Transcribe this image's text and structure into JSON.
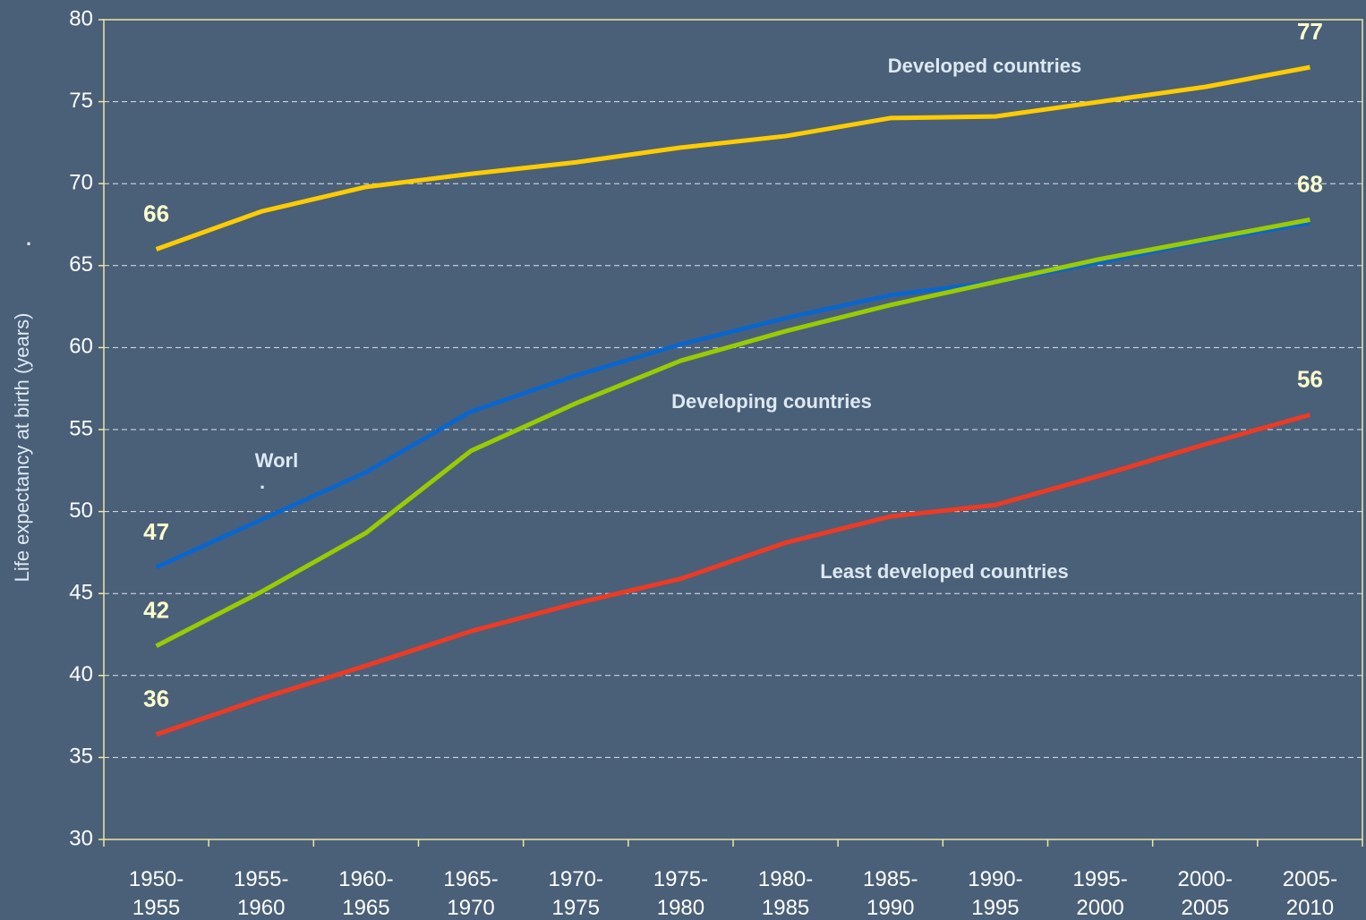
{
  "chart_data": {
    "type": "line",
    "ylabel": "Life expectancy at birth (years)",
    "categories": [
      "1950-1955",
      "1955-1960",
      "1960-1965",
      "1965-1970",
      "1970-1975",
      "1975-1980",
      "1980-1985",
      "1985-1990",
      "1990-1995",
      "1995-2000",
      "2000-2005",
      "2005-2010"
    ],
    "ylim": [
      30,
      80
    ],
    "yticks": [
      30,
      35,
      40,
      45,
      50,
      55,
      60,
      65,
      70,
      75,
      80
    ],
    "grid": true,
    "series": [
      {
        "name": "Developed countries",
        "color": "#ffcc00",
        "values": [
          66.0,
          68.3,
          69.8,
          70.6,
          71.3,
          72.2,
          72.9,
          74.0,
          74.1,
          75.0,
          75.9,
          77.1
        ],
        "value_labels": [
          "66",
          null,
          null,
          null,
          null,
          null,
          null,
          null,
          null,
          null,
          null,
          "77"
        ]
      },
      {
        "name": "Worl",
        "color": "#0a66cc",
        "values": [
          46.6,
          49.5,
          52.4,
          56.1,
          58.3,
          60.2,
          61.8,
          63.2,
          64.0,
          65.2,
          66.5,
          67.6
        ],
        "value_labels": [
          "47",
          null,
          null,
          null,
          null,
          null,
          null,
          null,
          null,
          null,
          null,
          null
        ]
      },
      {
        "name": "Developing countries",
        "color": "#99cc00",
        "values": [
          41.8,
          45.1,
          48.7,
          53.7,
          56.6,
          59.2,
          61.0,
          62.6,
          64.0,
          65.4,
          66.6,
          67.8
        ],
        "value_labels": [
          "42",
          null,
          null,
          null,
          null,
          null,
          null,
          null,
          null,
          null,
          null,
          "68"
        ]
      },
      {
        "name": "Least developed countries",
        "color": "#ee3a24",
        "values": [
          36.4,
          38.6,
          40.6,
          42.7,
          44.4,
          45.9,
          48.1,
          49.7,
          50.4,
          52.2,
          54.1,
          55.9
        ],
        "value_labels": [
          "36",
          null,
          null,
          null,
          null,
          null,
          null,
          null,
          null,
          null,
          null,
          "56"
        ]
      }
    ],
    "annotations": [
      ".",
      "."
    ]
  }
}
